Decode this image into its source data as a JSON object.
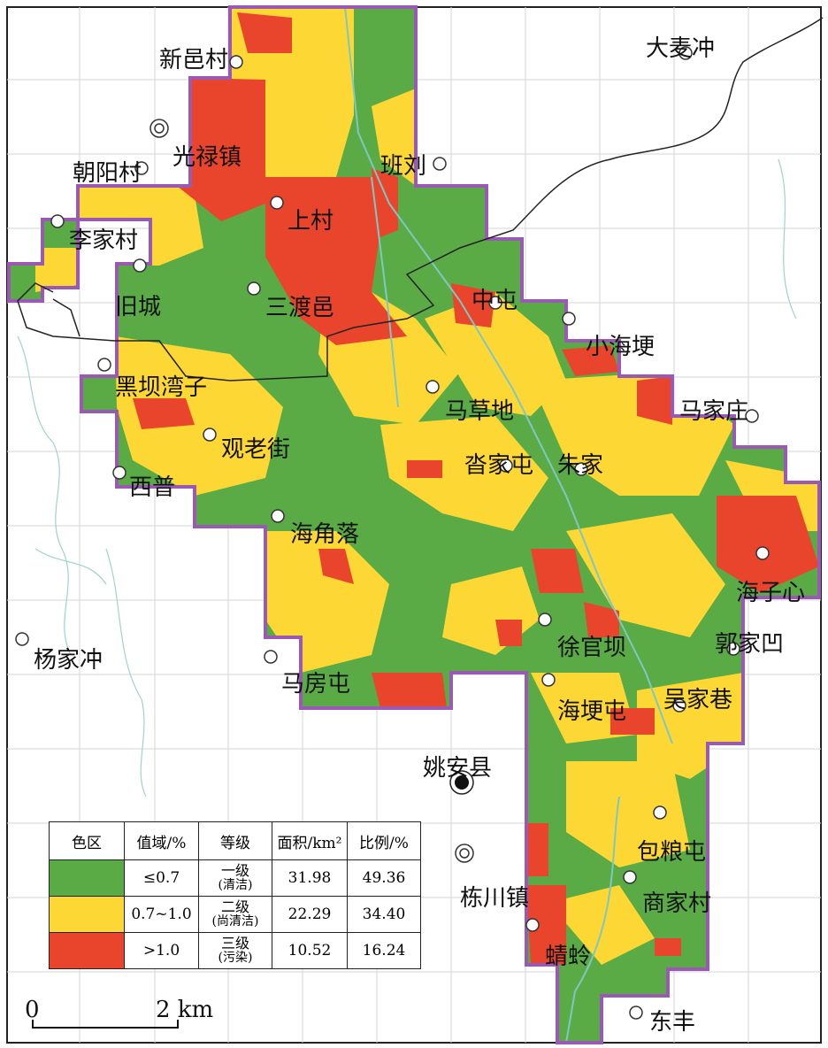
{
  "map": {
    "places": [
      {
        "name": "新邑村"
      },
      {
        "name": "大麦冲"
      },
      {
        "name": "光禄镇"
      },
      {
        "name": "朝阳村"
      },
      {
        "name": "班刘"
      },
      {
        "name": "上村"
      },
      {
        "name": "李家村"
      },
      {
        "name": "旧城"
      },
      {
        "name": "三渡邑"
      },
      {
        "name": "中屯"
      },
      {
        "name": "小海埂"
      },
      {
        "name": "黑坝湾子"
      },
      {
        "name": "马草地"
      },
      {
        "name": "马家庄"
      },
      {
        "name": "观老街"
      },
      {
        "name": "沓家屯"
      },
      {
        "name": "朱家"
      },
      {
        "name": "西普"
      },
      {
        "name": "海角落"
      },
      {
        "name": "海子心"
      },
      {
        "name": "徐官坝"
      },
      {
        "name": "郭家凹"
      },
      {
        "name": "杨家冲"
      },
      {
        "name": "马房屯"
      },
      {
        "name": "吴家巷"
      },
      {
        "name": "海埂屯"
      },
      {
        "name": "姚安县"
      },
      {
        "name": "包粮屯"
      },
      {
        "name": "栋川镇"
      },
      {
        "name": "商家村"
      },
      {
        "name": "蜻蛉"
      },
      {
        "name": "东丰"
      }
    ]
  },
  "colors": {
    "clean": "#5aab46",
    "fairly_clean": "#fdd835",
    "polluted": "#e8452c",
    "boundary": "#9b59b6"
  },
  "legend": {
    "headers": [
      "色区",
      "值域/%",
      "等级",
      "面积/km²",
      "比例/%"
    ],
    "rows": [
      {
        "range": "≤0.7",
        "grade": "一级",
        "grade_note": "(清洁)",
        "area": "31.98",
        "ratio": "49.36"
      },
      {
        "range": "0.7~1.0",
        "grade": "二级",
        "grade_note": "(尚清洁)",
        "area": "22.29",
        "ratio": "34.40"
      },
      {
        "range": ">1.0",
        "grade": "三级",
        "grade_note": "(污染)",
        "area": "10.52",
        "ratio": "16.24"
      }
    ]
  },
  "scale_bar": {
    "start": "0",
    "end": "2 km"
  }
}
